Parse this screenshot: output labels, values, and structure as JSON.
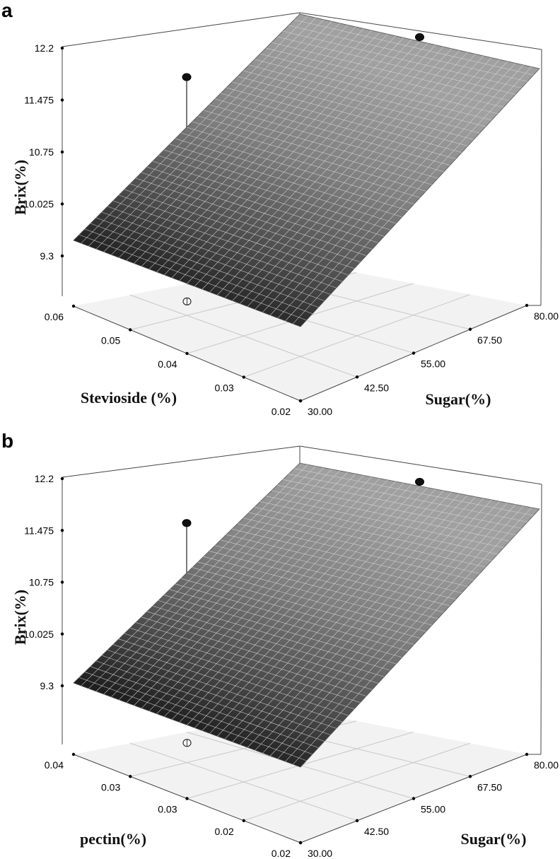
{
  "chart_data": [
    {
      "panel": "a",
      "type": "surface",
      "zlabel": "Brix(%)",
      "xlabel": "Stevioside (%)",
      "ylabel": "Sugar(%)",
      "z_ticks": [
        "9.3",
        "10.025",
        "10.75",
        "11.475",
        "12.2"
      ],
      "x_ticks": [
        "0.06",
        "0.05",
        "0.04",
        "0.03",
        "0.02"
      ],
      "y_ticks": [
        "30.00",
        "42.50",
        "55.00",
        "67.50",
        "80.00"
      ],
      "zlim": [
        9.3,
        12.2
      ],
      "xlim": [
        0.02,
        0.06
      ],
      "ylim": [
        30,
        80
      ],
      "surface_corners": {
        "x0.06_y30": 9.3,
        "x0.02_y30": 9.3,
        "x0.06_y80": 12.2,
        "x0.02_y80": 12.2
      },
      "design_points": [
        {
          "x": 0.04,
          "y": 80,
          "z": 12.2,
          "style": "filled",
          "position": "above"
        },
        {
          "x": 0.06,
          "y": 55,
          "z": 11.45,
          "style": "filled",
          "position": "above"
        },
        {
          "x": 0.02,
          "y": 55,
          "z": 10.75,
          "style": "open",
          "position": "below"
        },
        {
          "x": 0.04,
          "y": 30,
          "z": 9.05,
          "style": "open",
          "position": "below"
        }
      ]
    },
    {
      "panel": "b",
      "type": "surface",
      "zlabel": "Brix(%)",
      "xlabel": "pectin(%)",
      "ylabel": "Sugar(%)",
      "z_ticks": [
        "9.3",
        "10.025",
        "10.75",
        "11.475",
        "12.2"
      ],
      "x_ticks": [
        "0.04",
        "0.03",
        "0.03",
        "0.02",
        "0.02"
      ],
      "y_ticks": [
        "30.00",
        "42.50",
        "55.00",
        "67.50",
        "80.00"
      ],
      "zlim": [
        9.3,
        12.2
      ],
      "xlim": [
        0.02,
        0.04
      ],
      "ylim": [
        30,
        80
      ],
      "surface_corners": {
        "x0.04_y30": 9.3,
        "x0.02_y30": 9.3,
        "x0.04_y80": 12.2,
        "x0.02_y80": 12.2
      },
      "design_points": [
        {
          "x": 0.03,
          "y": 80,
          "z": 12.2,
          "style": "filled",
          "position": "above"
        },
        {
          "x": 0.04,
          "y": 55,
          "z": 11.45,
          "style": "filled",
          "position": "above"
        },
        {
          "x": 0.03,
          "y": 30,
          "z": 9.05,
          "style": "open",
          "position": "below"
        }
      ]
    }
  ],
  "colors": {
    "surface_dark": "#1e1e1e",
    "surface_mid": "#6e6e6e",
    "surface_light": "#9c9c9c",
    "mesh_line": "#dddddd",
    "floor": "#f2f2f2",
    "edge": "#444444"
  }
}
